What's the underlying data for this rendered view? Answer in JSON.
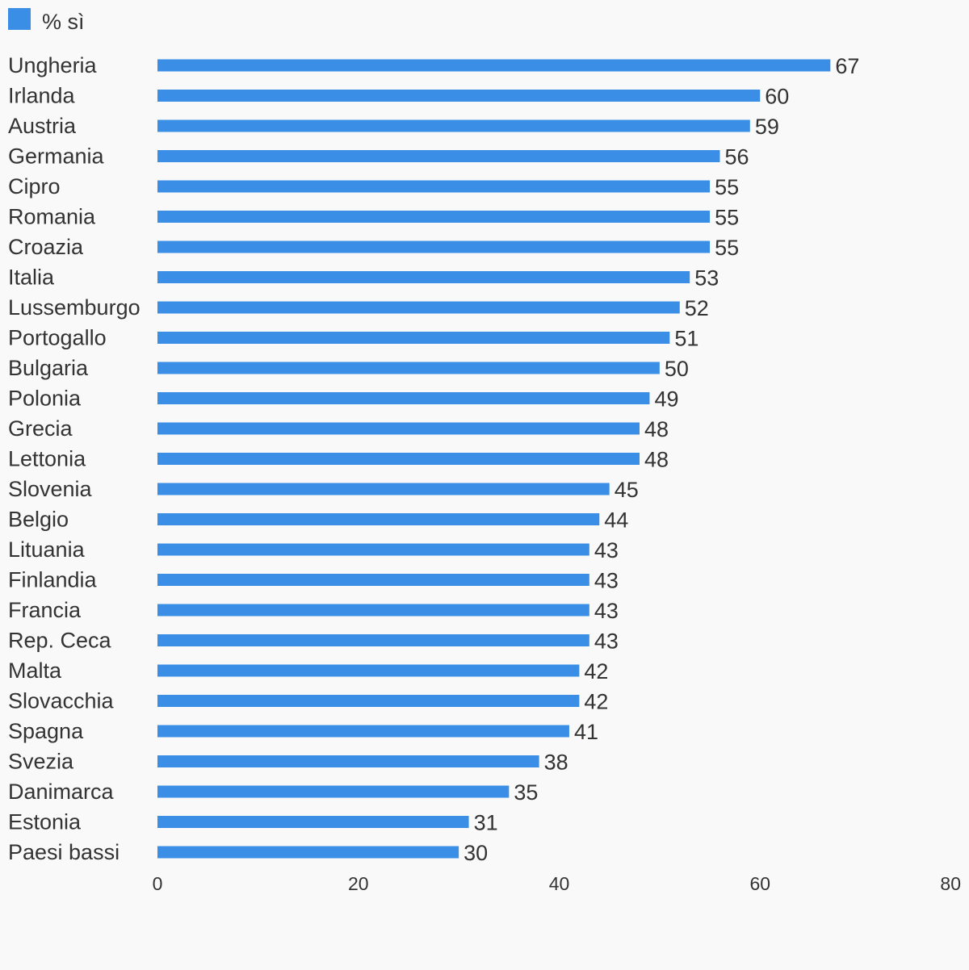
{
  "chart_data": {
    "type": "bar",
    "orientation": "horizontal",
    "title": "",
    "xlabel": "",
    "ylabel": "",
    "legend": {
      "placement": "top-left",
      "entries": [
        {
          "name": "% sì",
          "color": "#3a8ee6"
        }
      ]
    },
    "categories": [
      "Ungheria",
      "Irlanda",
      "Austria",
      "Germania",
      "Cipro",
      "Romania",
      "Croazia",
      "Italia",
      "Lussemburgo",
      "Portogallo",
      "Bulgaria",
      "Polonia",
      "Grecia",
      "Lettonia",
      "Slovenia",
      "Belgio",
      "Lituania",
      "Finlandia",
      "Francia",
      "Rep. Ceca",
      "Malta",
      "Slovacchia",
      "Spagna",
      "Svezia",
      "Danimarca",
      "Estonia",
      "Paesi bassi"
    ],
    "series": [
      {
        "name": "% sì",
        "color": "#3a8ee6",
        "values": [
          67,
          60,
          59,
          56,
          55,
          55,
          55,
          53,
          52,
          51,
          50,
          49,
          48,
          48,
          45,
          44,
          43,
          43,
          43,
          43,
          42,
          42,
          41,
          38,
          35,
          31,
          30
        ]
      }
    ],
    "xlim": [
      0,
      80
    ],
    "xticks": [
      0,
      20,
      40,
      60,
      80
    ],
    "grid": false,
    "data_labels": true
  }
}
